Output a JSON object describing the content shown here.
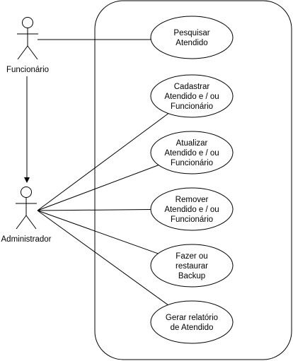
{
  "diagram": {
    "type": "use-case",
    "actors": [
      {
        "id": "funcionario",
        "label": "Funcionário"
      },
      {
        "id": "administrador",
        "label": "Administrador"
      }
    ],
    "use_cases": [
      {
        "id": "uc1",
        "lines": [
          "Pesquisar",
          "Atendido"
        ]
      },
      {
        "id": "uc2",
        "lines": [
          "Cadastrar",
          "Atendido e / ou",
          "Funcionário"
        ]
      },
      {
        "id": "uc3",
        "lines": [
          "Atualizar",
          "Atendido e / ou",
          "Funcionário"
        ]
      },
      {
        "id": "uc4",
        "lines": [
          "Remover",
          "Atendido e / ou",
          "Funcionário"
        ]
      },
      {
        "id": "uc5",
        "lines": [
          "Fazer ou",
          "restaurar",
          "Backup"
        ]
      },
      {
        "id": "uc6",
        "lines": [
          "Gerar relatório",
          "de Atendido"
        ]
      }
    ],
    "associations": [
      {
        "from": "funcionario",
        "to": "uc1"
      },
      {
        "from": "administrador",
        "to": "uc2"
      },
      {
        "from": "administrador",
        "to": "uc3"
      },
      {
        "from": "administrador",
        "to": "uc4"
      },
      {
        "from": "administrador",
        "to": "uc5"
      },
      {
        "from": "administrador",
        "to": "uc6"
      }
    ],
    "generalizations": [
      {
        "from": "funcionario",
        "to": "administrador"
      }
    ],
    "colors": {
      "stroke": "#000000",
      "fill": "#ffffff",
      "background": "#ffffff"
    }
  }
}
